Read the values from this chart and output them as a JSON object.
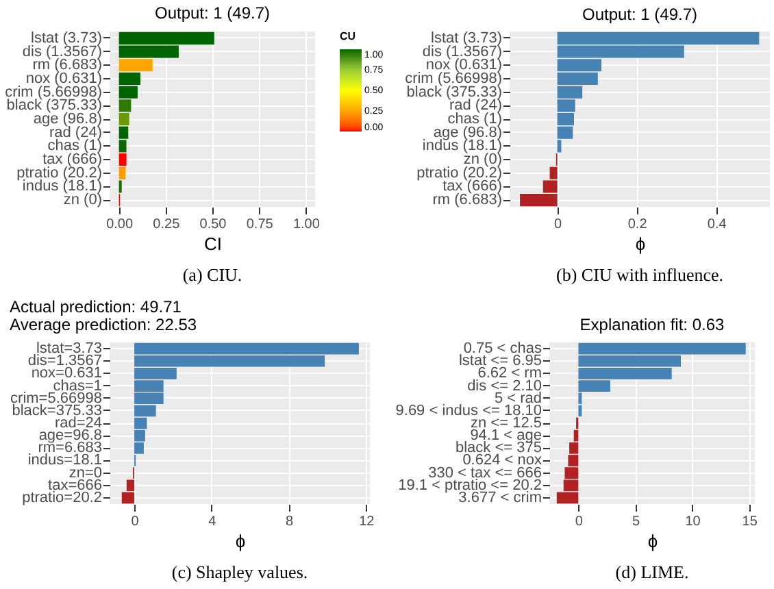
{
  "chart_data": [
    {
      "type": "bar",
      "orientation": "horizontal",
      "title": "Output: 1 (49.7)",
      "xlabel": "CI",
      "clabel": "CU",
      "grid": true,
      "categories": [
        "lstat (3.73)",
        "dis (1.3567)",
        "rm (6.683)",
        "nox (0.631)",
        "crim (5.66998)",
        "black (375.33)",
        "age (96.8)",
        "rad (24)",
        "chas (1)",
        "tax (666)",
        "ptratio (20.2)",
        "indus (18.1)",
        "zn (0)"
      ],
      "values": [
        0.51,
        0.32,
        0.18,
        0.115,
        0.1,
        0.065,
        0.055,
        0.05,
        0.04,
        0.04,
        0.035,
        0.015,
        0.005
      ],
      "colors": [
        "#006400",
        "#006400",
        "#ffa500",
        "#006400",
        "#006400",
        "#2f7a00",
        "#6a9a00",
        "#006400",
        "#0a6a00",
        "#ff0000",
        "#ff9a00",
        "#1a7000",
        "#ff0000"
      ],
      "xlim": [
        -0.05,
        1.05
      ],
      "xticks": [
        {
          "value": 0,
          "label": "0.00"
        },
        {
          "value": 0.25,
          "label": "0.25"
        },
        {
          "value": 0.5,
          "label": "0.50"
        },
        {
          "value": 0.75,
          "label": "0.75"
        },
        {
          "value": 1,
          "label": "1.00"
        }
      ],
      "clim": [
        0,
        1
      ],
      "cticks": [
        {
          "value": 0,
          "label": "0.00"
        },
        {
          "value": 0.25,
          "label": "0.25"
        },
        {
          "value": 0.5,
          "label": "0.50"
        },
        {
          "value": 0.75,
          "label": "0.75"
        },
        {
          "value": 1,
          "label": "1.00"
        }
      ],
      "annotations": [
        "(a) CIU."
      ]
    },
    {
      "type": "bar",
      "orientation": "horizontal",
      "title": "Output: 1 (49.7)",
      "xlabel": "ϕ",
      "grid": true,
      "categories": [
        "lstat (3.73)",
        "dis (1.3567)",
        "nox (0.631)",
        "crim (5.66998)",
        "black (375.33)",
        "rad (24)",
        "chas (1)",
        "age (96.8)",
        "indus (18.1)",
        "zn (0)",
        "ptratio (20.2)",
        "tax (666)",
        "rm (6.683)"
      ],
      "values": [
        0.508,
        0.319,
        0.111,
        0.102,
        0.063,
        0.045,
        0.042,
        0.039,
        0.01,
        -0.003,
        -0.019,
        -0.036,
        -0.094
      ],
      "colors": [
        "#4682b4",
        "#4682b4",
        "#4682b4",
        "#4682b4",
        "#4682b4",
        "#4682b4",
        "#4682b4",
        "#4682b4",
        "#4682b4",
        "#b22222",
        "#b22222",
        "#b22222",
        "#b22222"
      ],
      "xlim": [
        -0.12,
        0.535
      ],
      "xticks": [
        0,
        0.2,
        0.4
      ],
      "annotations": [
        "(b) CIU with influence."
      ]
    },
    {
      "type": "bar",
      "orientation": "horizontal",
      "title": "Actual prediction: 49.71",
      "subtitle": "Average prediction: 22.53",
      "xlabel": "ϕ",
      "grid": true,
      "categories": [
        "lstat=3.73",
        "dis=1.3567",
        "nox=0.631",
        "chas=1",
        "crim=5.66998",
        "black=375.33",
        "rad=24",
        "age=96.8",
        "rm=6.683",
        "indus=18.1",
        "zn=0",
        "tax=666",
        "ptratio=20.2"
      ],
      "values": [
        11.63,
        9.86,
        2.19,
        1.51,
        1.51,
        1.12,
        0.65,
        0.56,
        0.49,
        0.07,
        -0.07,
        -0.4,
        -0.65
      ],
      "colors": [
        "#4682b4",
        "#4682b4",
        "#4682b4",
        "#4682b4",
        "#4682b4",
        "#4682b4",
        "#4682b4",
        "#4682b4",
        "#4682b4",
        "#4682b4",
        "#b22222",
        "#b22222",
        "#b22222"
      ],
      "xlim": [
        -1.28,
        12.2
      ],
      "xticks": [
        0,
        4,
        8,
        12
      ],
      "annotations": [
        "(c) Shapley values."
      ]
    },
    {
      "type": "bar",
      "orientation": "horizontal",
      "title": "Explanation fit: 0.63",
      "xlabel": "ϕ",
      "grid": true,
      "categories": [
        "0.75 < chas",
        "lstat <= 6.95",
        "6.62 < rm",
        "dis <= 2.10",
        "5 < rad",
        "9.69 < indus <= 18.10",
        "zn <= 12.5",
        "94.1 < age",
        "black <= 375",
        "0.624 < nox",
        "330 < tax <= 666",
        "19.1 < ptratio <= 20.2",
        "3.677 < crim"
      ],
      "values": [
        14.7,
        9.0,
        8.2,
        2.8,
        0.3,
        0.3,
        -0.2,
        -0.4,
        -0.8,
        -0.9,
        -1.2,
        -1.3,
        -1.9
      ],
      "colors": [
        "#4682b4",
        "#4682b4",
        "#4682b4",
        "#4682b4",
        "#4682b4",
        "#4682b4",
        "#b22222",
        "#b22222",
        "#b22222",
        "#b22222",
        "#b22222",
        "#b22222",
        "#b22222"
      ],
      "xlim": [
        -2.55,
        15.5
      ],
      "xticks": [
        0,
        5,
        10,
        15
      ],
      "annotations": [
        "(d) LIME."
      ]
    }
  ]
}
